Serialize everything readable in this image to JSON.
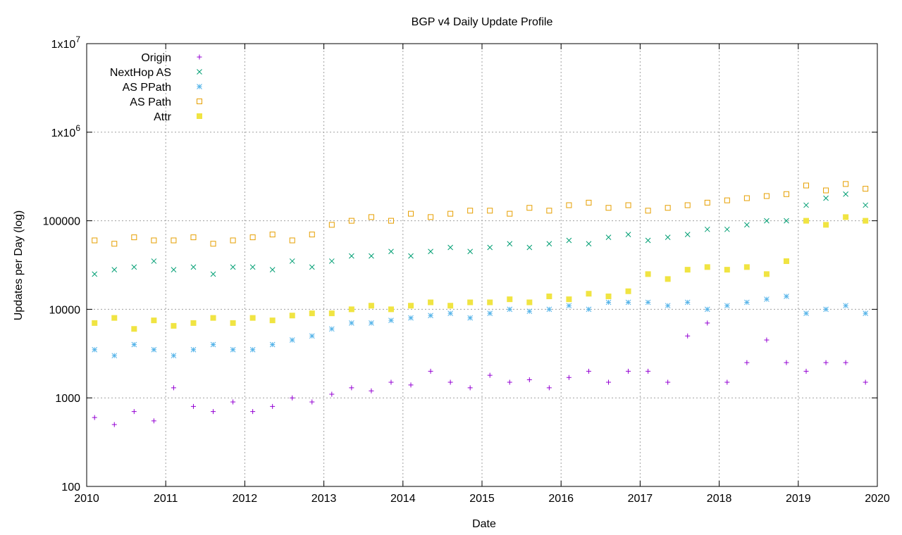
{
  "chart_data": {
    "type": "scatter",
    "title": "BGP v4 Daily Update Profile",
    "x_label": "Date",
    "y_label": "Updates per Day (log)",
    "log_y": true,
    "grid": true,
    "legend": "top-left",
    "xlim": [
      2010,
      2020
    ],
    "xticks": [
      2010,
      2011,
      2012,
      2013,
      2014,
      2015,
      2016,
      2017,
      2018,
      2019,
      2020
    ],
    "ylim": [
      100,
      10000000
    ],
    "yticks": [
      100,
      1000,
      10000,
      100000,
      {
        "value": 1000000,
        "label": "1x10",
        "sup": "6"
      },
      {
        "value": 10000000,
        "label": "1x10",
        "sup": "7"
      }
    ],
    "x": [
      2010.1,
      2010.35,
      2010.6,
      2010.85,
      2011.1,
      2011.35,
      2011.6,
      2011.85,
      2012.1,
      2012.35,
      2012.6,
      2012.85,
      2013.1,
      2013.35,
      2013.6,
      2013.85,
      2014.1,
      2014.35,
      2014.6,
      2014.85,
      2015.1,
      2015.35,
      2015.6,
      2015.85,
      2016.1,
      2016.35,
      2016.6,
      2016.85,
      2017.1,
      2017.35,
      2017.6,
      2017.85,
      2018.1,
      2018.35,
      2018.6,
      2018.85,
      2019.1,
      2019.35,
      2019.6,
      2019.85
    ],
    "series": [
      {
        "name": "Origin",
        "color": "#9400d3",
        "marker": "plus",
        "values": [
          600,
          500,
          700,
          550,
          1300,
          800,
          700,
          900,
          700,
          800,
          1000,
          900,
          1100,
          1300,
          1200,
          1500,
          1400,
          2000,
          1500,
          1300,
          1800,
          1500,
          1600,
          1300,
          1700,
          2000,
          1500,
          2000,
          2000,
          1500,
          5000,
          7000,
          1500,
          2500,
          4500,
          2500,
          2000,
          2500,
          2500,
          1500
        ]
      },
      {
        "name": "NextHop AS",
        "color": "#009e73",
        "marker": "cross",
        "values": [
          25000,
          28000,
          30000,
          35000,
          28000,
          30000,
          25000,
          30000,
          30000,
          28000,
          35000,
          30000,
          35000,
          40000,
          40000,
          45000,
          40000,
          45000,
          50000,
          45000,
          50000,
          55000,
          50000,
          55000,
          60000,
          55000,
          65000,
          70000,
          60000,
          65000,
          70000,
          80000,
          80000,
          90000,
          100000,
          100000,
          150000,
          180000,
          200000,
          150000
        ]
      },
      {
        "name": "AS PPath",
        "color": "#56b4e9",
        "marker": "star",
        "values": [
          3500,
          3000,
          4000,
          3500,
          3000,
          3500,
          4000,
          3500,
          3500,
          4000,
          4500,
          5000,
          6000,
          7000,
          7000,
          7500,
          8000,
          8500,
          9000,
          8000,
          9000,
          10000,
          9500,
          10000,
          11000,
          10000,
          12000,
          12000,
          12000,
          11000,
          12000,
          10000,
          11000,
          12000,
          13000,
          14000,
          9000,
          10000,
          11000,
          9000
        ]
      },
      {
        "name": "AS Path",
        "color": "#e69f00",
        "marker": "open-square",
        "values": [
          60000,
          55000,
          65000,
          60000,
          60000,
          65000,
          55000,
          60000,
          65000,
          70000,
          60000,
          70000,
          90000,
          100000,
          110000,
          100000,
          120000,
          110000,
          120000,
          130000,
          130000,
          120000,
          140000,
          130000,
          150000,
          160000,
          140000,
          150000,
          130000,
          140000,
          150000,
          160000,
          170000,
          180000,
          190000,
          200000,
          250000,
          220000,
          260000,
          230000
        ]
      },
      {
        "name": "Attr",
        "color": "#f0e442",
        "marker": "filled-square",
        "values": [
          7000,
          8000,
          6000,
          7500,
          6500,
          7000,
          8000,
          7000,
          8000,
          7500,
          8500,
          9000,
          9000,
          10000,
          11000,
          10000,
          11000,
          12000,
          11000,
          12000,
          12000,
          13000,
          12000,
          14000,
          13000,
          15000,
          14000,
          16000,
          25000,
          22000,
          28000,
          30000,
          28000,
          30000,
          25000,
          35000,
          100000,
          90000,
          110000,
          100000
        ]
      }
    ]
  }
}
